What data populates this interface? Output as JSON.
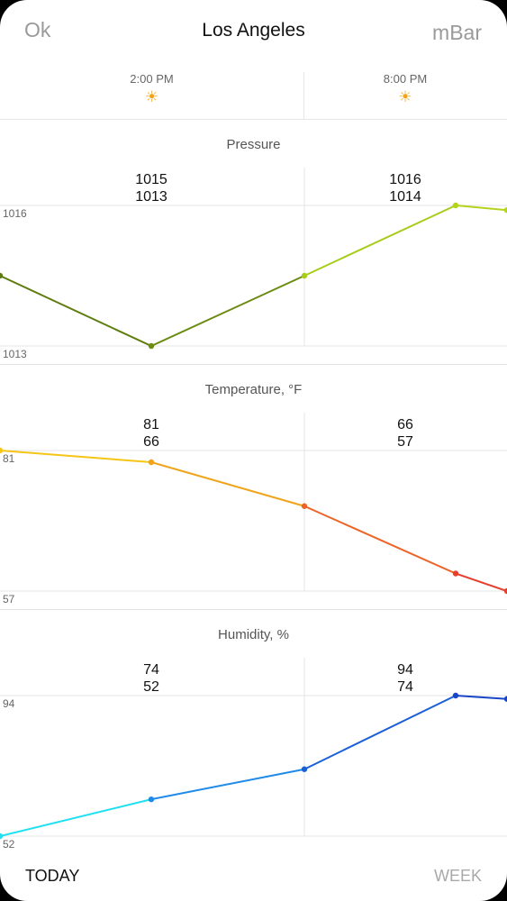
{
  "header": {
    "left": "Ok",
    "title": "Los Angeles",
    "right": "mBar"
  },
  "times": [
    {
      "label": "2:00 PM",
      "icon": "sun-icon",
      "glyph": "☀"
    },
    {
      "label": "8:00 PM",
      "icon": "sun-icon",
      "glyph": "☀"
    }
  ],
  "pressure": {
    "title": "Pressure",
    "col1": {
      "high": "1015",
      "low": "1013"
    },
    "col2": {
      "high": "1016",
      "low": "1014"
    },
    "axis_max": "1016",
    "axis_min": "1013"
  },
  "temperature": {
    "title": "Temperature, °F",
    "col1": {
      "high": "81",
      "low": "66"
    },
    "col2": {
      "high": "66",
      "low": "57"
    },
    "axis_max": "81",
    "axis_min": "57"
  },
  "humidity": {
    "title": "Humidity, %",
    "col1": {
      "high": "74",
      "low": "52"
    },
    "col2": {
      "high": "94",
      "low": "74"
    },
    "axis_max": "94",
    "axis_min": "52"
  },
  "chart_data": [
    {
      "type": "line",
      "title": "Pressure",
      "ylim": [
        1013,
        1016
      ],
      "values": [
        1014.5,
        1013,
        1014.5,
        1016,
        1015.9
      ],
      "colors": [
        "#5e7d0e",
        "#6b8b12",
        "#a8cc1a",
        "#b4d41c"
      ]
    },
    {
      "type": "line",
      "title": "Temperature, °F",
      "ylim": [
        57,
        81
      ],
      "values": [
        81,
        79,
        71.5,
        60,
        57
      ],
      "colors": [
        "#f5c518",
        "#f0a41c",
        "#ec6428",
        "#e83e2c"
      ]
    },
    {
      "type": "line",
      "title": "Humidity, %",
      "ylim": [
        52,
        94
      ],
      "values": [
        52,
        63,
        72,
        94,
        93
      ],
      "colors": [
        "#1fe0f0",
        "#1f8ae8",
        "#1a5fd8",
        "#1846c8"
      ]
    }
  ],
  "footer": {
    "today": "TODAY",
    "week": "WEEK"
  }
}
